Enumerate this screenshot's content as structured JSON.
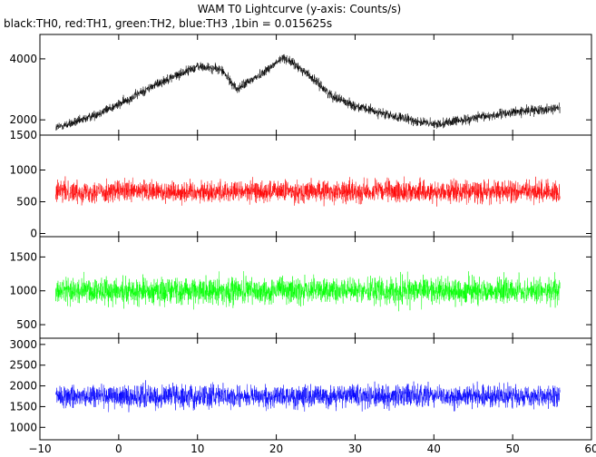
{
  "header": {
    "title": "WAM T0 Lightcurve (y-axis: Counts/s)",
    "subtitle": "black:TH0, red:TH1, green:TH2, blue:TH3 ,1bin = 0.015625s"
  },
  "chart_data": {
    "type": "line",
    "title": "WAM T0 Lightcurve (y-axis: Counts/s)",
    "subtitle": "black:TH0, red:TH1, green:TH2, blue:TH3 ,1bin = 0.015625s",
    "xlim": [
      -10,
      60
    ],
    "x_ticks": [
      -10,
      0,
      10,
      20,
      30,
      40,
      50,
      60
    ],
    "x_tick_labels": [
      "−10",
      "0",
      "10",
      "20",
      "30",
      "40",
      "50",
      "60"
    ],
    "x_data_range": [
      -8,
      56
    ],
    "grid": false,
    "panels": [
      {
        "name": "TH0",
        "color": "#000000",
        "ylim": [
          1500,
          4800
        ],
        "y_ticks": [
          1500,
          2000,
          4000
        ],
        "y_tick_labels": [
          "1500",
          "2000",
          "4000"
        ],
        "trend": {
          "x": [
            -8,
            -5,
            0,
            5,
            10,
            13,
            15,
            18,
            21,
            24,
            27,
            30,
            35,
            40,
            45,
            50,
            56
          ],
          "y": [
            1750,
            1950,
            2500,
            3200,
            3750,
            3650,
            3000,
            3500,
            4050,
            3500,
            2800,
            2450,
            2100,
            1850,
            2050,
            2250,
            2400
          ]
        },
        "noise_amplitude": 300
      },
      {
        "name": "TH1",
        "color": "#ff0000",
        "ylim": [
          -50,
          1550
        ],
        "y_ticks": [
          0,
          500,
          1000
        ],
        "y_tick_labels": [
          "0",
          "500",
          "1000"
        ],
        "trend": {
          "x": [
            -8,
            56
          ],
          "y": [
            660,
            660
          ]
        },
        "noise_amplitude": 330
      },
      {
        "name": "TH2",
        "color": "#00ff00",
        "ylim": [
          300,
          1800
        ],
        "y_ticks": [
          500,
          1000,
          1500
        ],
        "y_tick_labels": [
          "500",
          "1000",
          "1500"
        ],
        "trend": {
          "x": [
            -8,
            56
          ],
          "y": [
            1000,
            1000
          ]
        },
        "noise_amplitude": 380
      },
      {
        "name": "TH3",
        "color": "#0000ff",
        "ylim": [
          700,
          3150
        ],
        "y_ticks": [
          1000,
          1500,
          2000,
          2500,
          3000
        ],
        "y_tick_labels": [
          "1000",
          "1500",
          "2000",
          "2500",
          "3000"
        ],
        "trend": {
          "x": [
            -8,
            56
          ],
          "y": [
            1750,
            1750
          ]
        },
        "noise_amplitude": 520
      }
    ]
  }
}
